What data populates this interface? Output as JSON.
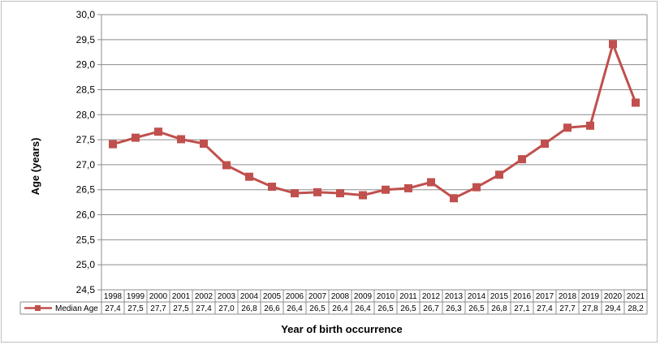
{
  "chart_data": {
    "type": "line",
    "title": "",
    "ylabel": "Age (years)",
    "xlabel": "Year of birth occurrence",
    "ylim": [
      24.5,
      30.0
    ],
    "ystep": 0.5,
    "ytick_labels": [
      "24,5",
      "25,0",
      "25,5",
      "26,0",
      "26,5",
      "27,0",
      "27,5",
      "28,0",
      "28,5",
      "29,0",
      "29,5",
      "30,0"
    ],
    "grid": true,
    "legend": "in-table",
    "categories": [
      "1998",
      "1999",
      "2000",
      "2001",
      "2002",
      "2003",
      "2004",
      "2005",
      "2006",
      "2007",
      "2008",
      "2009",
      "2010",
      "2011",
      "2012",
      "2013",
      "2014",
      "2015",
      "2016",
      "2017",
      "2018",
      "2019",
      "2020",
      "2021"
    ],
    "series": [
      {
        "name": "Median Age",
        "color": "#c0504d",
        "marker": "square",
        "values": [
          27.41,
          27.54,
          27.66,
          27.51,
          27.42,
          26.99,
          26.76,
          26.56,
          26.43,
          26.45,
          26.43,
          26.39,
          26.5,
          26.53,
          26.65,
          26.33,
          26.55,
          26.8,
          27.11,
          27.42,
          27.74,
          27.78,
          29.41,
          28.24
        ],
        "table_labels": [
          "27,4",
          "27,5",
          "27,7",
          "27,5",
          "27,4",
          "27,0",
          "26,8",
          "26,6",
          "26,4",
          "26,5",
          "26,4",
          "26,4",
          "26,5",
          "26,5",
          "26,7",
          "26,3",
          "26,5",
          "26,8",
          "27,1",
          "27,4",
          "27,7",
          "27,8",
          "29,4",
          "28,2"
        ]
      }
    ]
  }
}
